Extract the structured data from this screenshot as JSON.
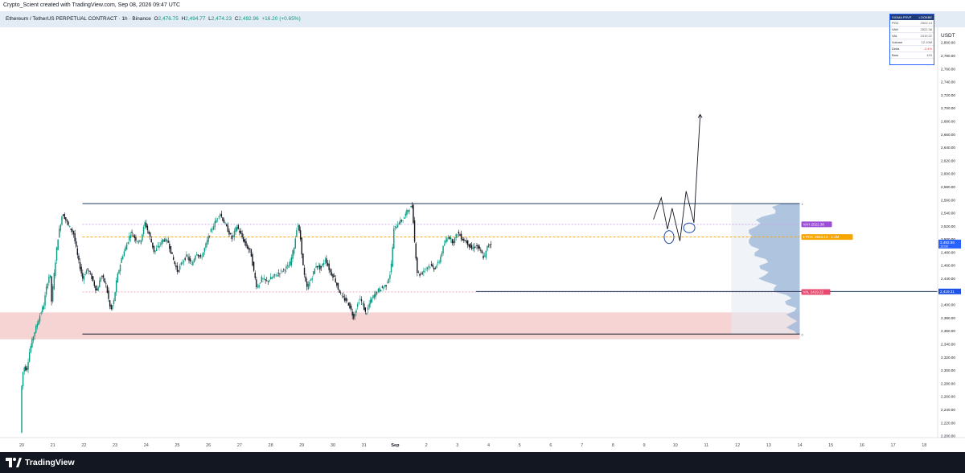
{
  "header": {
    "caption": "Crypto_Scient created with TradingView.com, Sep 08, 2026 09:47 UTC"
  },
  "legend": {
    "symbol": "Ethereum / TetherUS PERPETUAL CONTRACT · 1h · Binance",
    "o_label": "O",
    "o_value": "2,476.75",
    "h_label": "H",
    "h_value": "2,494.77",
    "l_label": "L",
    "l_value": "2,474.23",
    "c_label": "C",
    "c_value": "2,492.96",
    "change": "+16.20 (+0.65%)"
  },
  "stats": {
    "title": "SIGMA FRVP",
    "title_right": "LOOKBE",
    "rows": [
      {
        "label": "POC",
        "value": "2503.14"
      },
      {
        "label": "VAH",
        "value": "2522.38"
      },
      {
        "label": "VAL",
        "value": "2419.22"
      },
      {
        "label": "Volume",
        "value": "12.10M"
      },
      {
        "label": "Delta",
        "value": "-3.4%"
      },
      {
        "label": "Bars",
        "value": "415"
      }
    ]
  },
  "chart_data": {
    "type": "candlestick",
    "currency": "USDT",
    "y_ticks": [
      2200,
      2220,
      2240,
      2260,
      2280,
      2300,
      2320,
      2340,
      2360,
      2380,
      2400,
      2420,
      2440,
      2460,
      2480,
      2500,
      2520,
      2540,
      2560,
      2580,
      2600,
      2620,
      2640,
      2660,
      2680,
      2700,
      2720,
      2740,
      2760,
      2780,
      2800
    ],
    "y_tick_labels": [
      "2,200.00",
      "2,220.00",
      "2,240.00",
      "2,260.00",
      "2,280.00",
      "2,300.00",
      "2,320.00",
      "2,340.00",
      "2,360.00",
      "2,380.00",
      "2,400.00",
      "2,420.00",
      "2,440.00",
      "2,460.00",
      "2,480.00",
      "2,500.00",
      "2,520.00",
      "2,540.00",
      "2,560.00",
      "2,580.00",
      "2,600.00",
      "2,620.00",
      "2,640.00",
      "2,660.00",
      "2,680.00",
      "2,700.00",
      "2,720.00",
      "2,740.00",
      "2,760.00",
      "2,780.00",
      "2,800.00"
    ],
    "ylim": [
      2197,
      2823
    ],
    "x_labels": [
      "20",
      "21",
      "22",
      "23",
      "24",
      "25",
      "26",
      "27",
      "28",
      "29",
      "30",
      "31",
      "Sep",
      "2",
      "3",
      "4",
      "5",
      "6",
      "7",
      "8",
      "9",
      "10",
      "11",
      "12",
      "13",
      "14",
      "15",
      "16",
      "17",
      "18"
    ],
    "x_label_index": [
      0,
      1,
      2,
      3,
      4,
      5,
      6,
      7,
      8,
      9,
      10,
      11,
      12,
      13,
      14,
      15,
      16,
      17,
      18,
      19,
      20,
      21,
      22,
      23,
      24,
      25,
      26,
      27,
      28,
      29
    ],
    "price_path": [
      [
        0.0,
        2205
      ],
      [
        0.05,
        2290
      ],
      [
        0.12,
        2305
      ],
      [
        0.2,
        2300
      ],
      [
        0.3,
        2330
      ],
      [
        0.4,
        2350
      ],
      [
        0.5,
        2365
      ],
      [
        0.6,
        2380
      ],
      [
        0.75,
        2400
      ],
      [
        0.85,
        2430
      ],
      [
        0.95,
        2450
      ],
      [
        1.0,
        2405
      ],
      [
        1.1,
        2455
      ],
      [
        1.2,
        2500
      ],
      [
        1.35,
        2540
      ],
      [
        1.55,
        2520
      ],
      [
        1.7,
        2510
      ],
      [
        1.85,
        2470
      ],
      [
        2.0,
        2440
      ],
      [
        2.15,
        2455
      ],
      [
        2.3,
        2440
      ],
      [
        2.45,
        2420
      ],
      [
        2.6,
        2445
      ],
      [
        2.75,
        2430
      ],
      [
        2.9,
        2390
      ],
      [
        3.0,
        2405
      ],
      [
        3.1,
        2440
      ],
      [
        3.25,
        2470
      ],
      [
        3.4,
        2490
      ],
      [
        3.55,
        2510
      ],
      [
        3.7,
        2500
      ],
      [
        3.85,
        2495
      ],
      [
        4.0,
        2525
      ],
      [
        4.15,
        2505
      ],
      [
        4.3,
        2480
      ],
      [
        4.45,
        2490
      ],
      [
        4.6,
        2500
      ],
      [
        4.75,
        2495
      ],
      [
        4.9,
        2470
      ],
      [
        5.05,
        2450
      ],
      [
        5.2,
        2465
      ],
      [
        5.35,
        2475
      ],
      [
        5.5,
        2460
      ],
      [
        5.65,
        2480
      ],
      [
        5.8,
        2470
      ],
      [
        5.95,
        2490
      ],
      [
        6.1,
        2510
      ],
      [
        6.25,
        2525
      ],
      [
        6.4,
        2540
      ],
      [
        6.5,
        2530
      ],
      [
        6.65,
        2515
      ],
      [
        6.8,
        2500
      ],
      [
        6.95,
        2520
      ],
      [
        7.1,
        2505
      ],
      [
        7.25,
        2490
      ],
      [
        7.4,
        2480
      ],
      [
        7.5,
        2450
      ],
      [
        7.6,
        2425
      ],
      [
        7.75,
        2440
      ],
      [
        7.9,
        2435
      ],
      [
        8.05,
        2440
      ],
      [
        8.2,
        2445
      ],
      [
        8.35,
        2450
      ],
      [
        8.5,
        2455
      ],
      [
        8.65,
        2460
      ],
      [
        8.8,
        2490
      ],
      [
        8.9,
        2525
      ],
      [
        9.0,
        2500
      ],
      [
        9.1,
        2450
      ],
      [
        9.2,
        2425
      ],
      [
        9.35,
        2440
      ],
      [
        9.5,
        2460
      ],
      [
        9.65,
        2455
      ],
      [
        9.8,
        2470
      ],
      [
        9.95,
        2450
      ],
      [
        10.1,
        2440
      ],
      [
        10.2,
        2425
      ],
      [
        10.35,
        2410
      ],
      [
        10.5,
        2405
      ],
      [
        10.6,
        2395
      ],
      [
        10.7,
        2380
      ],
      [
        10.8,
        2395
      ],
      [
        10.9,
        2410
      ],
      [
        11.0,
        2400
      ],
      [
        11.1,
        2385
      ],
      [
        11.2,
        2400
      ],
      [
        11.3,
        2410
      ],
      [
        11.45,
        2420
      ],
      [
        11.6,
        2425
      ],
      [
        11.75,
        2430
      ],
      [
        11.9,
        2450
      ],
      [
        12.0,
        2515
      ],
      [
        12.15,
        2525
      ],
      [
        12.3,
        2530
      ],
      [
        12.45,
        2545
      ],
      [
        12.6,
        2550
      ],
      [
        12.65,
        2505
      ],
      [
        12.75,
        2450
      ],
      [
        12.85,
        2445
      ],
      [
        13.0,
        2455
      ],
      [
        13.15,
        2460
      ],
      [
        13.3,
        2455
      ],
      [
        13.45,
        2465
      ],
      [
        13.6,
        2490
      ],
      [
        13.75,
        2505
      ],
      [
        13.9,
        2495
      ],
      [
        14.05,
        2510
      ],
      [
        14.2,
        2500
      ],
      [
        14.35,
        2495
      ],
      [
        14.5,
        2485
      ],
      [
        14.65,
        2490
      ],
      [
        14.8,
        2480
      ],
      [
        14.9,
        2470
      ],
      [
        15.0,
        2488
      ],
      [
        15.1,
        2493
      ]
    ],
    "range_high": 2554,
    "range_low": 2355,
    "vah": 2522.38,
    "poc": 2503.14,
    "val": 2419.22,
    "support_zone": [
      2347,
      2388
    ],
    "breakout_line": 2420,
    "price_labels": {
      "vah": "VAH  2522.38",
      "poc": "♦ POC  2503.14  ·  1.1M",
      "val": "VAL  2419.22",
      "current": "2,492.96",
      "current_sub": "12:02",
      "level": "2,419.31"
    },
    "projection": [
      [
        20.3,
        2530
      ],
      [
        20.55,
        2563
      ],
      [
        20.75,
        2515
      ],
      [
        20.9,
        2547
      ],
      [
        21.15,
        2497
      ],
      [
        21.35,
        2573
      ],
      [
        21.6,
        2525
      ],
      [
        21.8,
        2690
      ]
    ],
    "profile_fraction": 0.62,
    "fib_top": "1",
    "fib_bottom": "0"
  },
  "footer": {
    "brand": "TradingView"
  },
  "colors": {
    "candle_up": "#089981",
    "candle_down": "#131722",
    "range_line": "#1e3a5f",
    "poc": "#f7a600",
    "vah_badge": "#9c4cd8",
    "val_badge": "#e84a6f",
    "zone_fill": "#f3c6c6",
    "profile_fill": "#9fb8d8",
    "price_badge": "#2962ff"
  }
}
